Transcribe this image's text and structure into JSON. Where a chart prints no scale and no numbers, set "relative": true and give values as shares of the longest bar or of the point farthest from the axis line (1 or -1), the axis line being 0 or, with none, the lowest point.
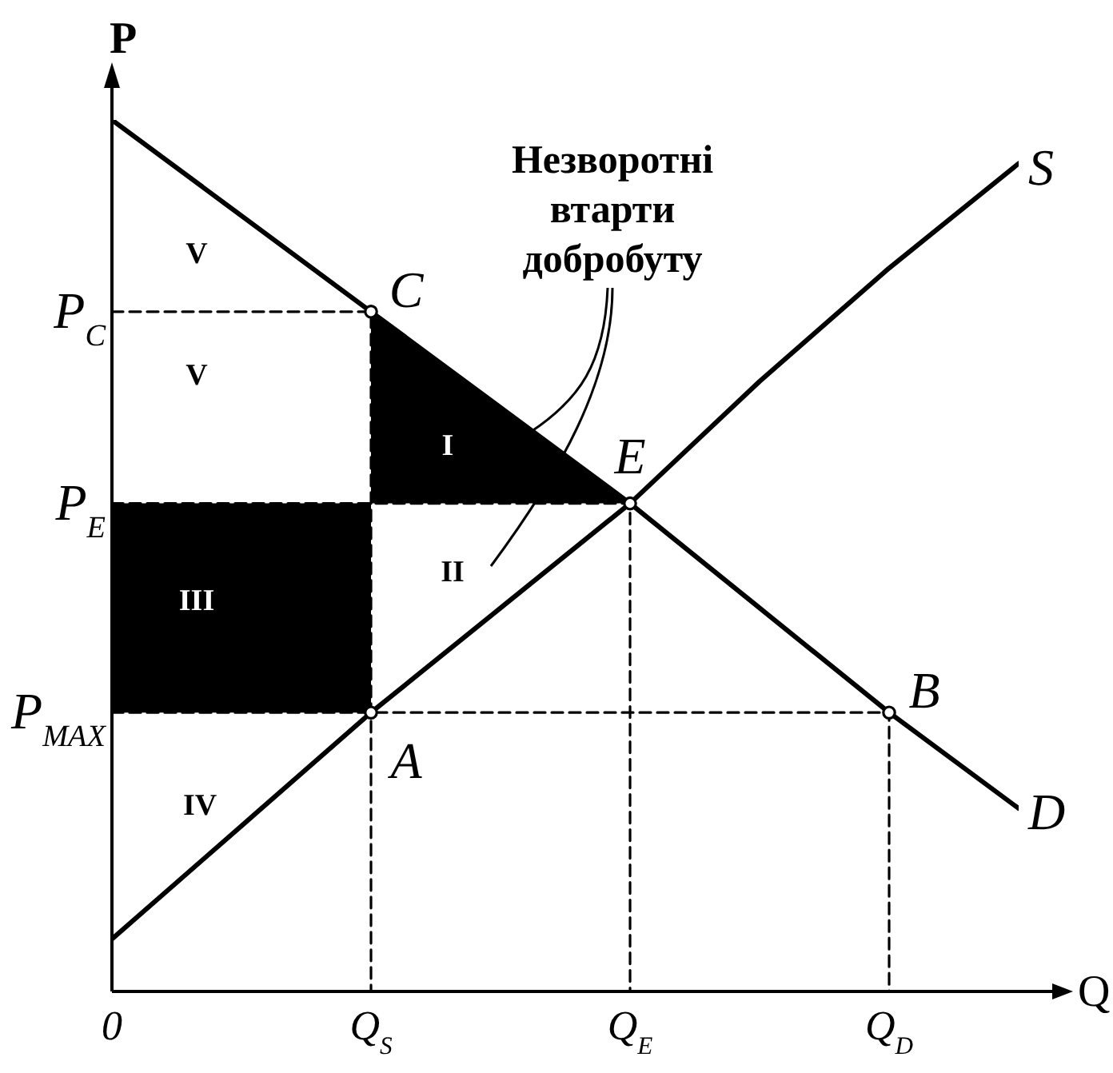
{
  "chart_data": {
    "type": "line",
    "relative": true,
    "xlabel": "Q",
    "ylabel": "P",
    "categories": [
      "0",
      null,
      "Q$_{S}$",
      null,
      "Q$_{E}$",
      null,
      "Q$_{D}$",
      null
    ],
    "series": [
      {
        "type": "area",
        "color": "#000000",
        "x": [
          "0",
          "Q$_{S}$",
          "Q$_{S}$",
          "0"
        ],
        "values": [
          0.56,
          0.56,
          0.32,
          0.32
        ]
      },
      {
        "type": "area",
        "color": "#000000",
        "x": [
          "Q$_{S}$",
          "Q$_{E}$",
          "Q$_{S}$"
        ],
        "values": [
          0.78,
          0.56,
          0.56
        ]
      },
      {
        "color": "#000000",
        "line_style": "dashed",
        "x": [
          "0",
          "Q$_{S}$",
          "Q$_{S}$"
        ],
        "values": [
          0.78,
          0.78,
          0
        ]
      },
      {
        "color": "#000000",
        "line_style": "dashed",
        "x": [
          "0",
          "Q$_{E}$",
          "Q$_{E}$"
        ],
        "values": [
          0.56,
          0.56,
          0
        ]
      },
      {
        "color": "#000000",
        "line_style": "dashed",
        "x": [
          "0",
          "Q$_{D}$",
          "Q$_{D}$"
        ],
        "values": [
          0.32,
          0.32,
          0
        ]
      },
      {
        "name": "S",
        "color": "#000000",
        "values": [
          0.06,
          0.19,
          0.32,
          0.44,
          0.56,
          0.7,
          0.83,
          0.95
        ]
      },
      {
        "name": "D",
        "color": "#000000",
        "values": [
          1,
          0.89,
          0.78,
          0.67,
          0.56,
          0.44,
          0.32,
          0.21
        ]
      },
      {
        "type": "scatter",
        "color": "#000000",
        "marker": "circle",
        "x": [
          "Q$_{S}$",
          "Q$_{E}$",
          "Q$_{S}$",
          "Q$_{D}$"
        ],
        "values": [
          0.78,
          0.56,
          0.32,
          0.32
        ]
      }
    ],
    "annotations": [
      "Незворотні втарти добробуту",
      "V",
      "V",
      "I",
      "II",
      "III",
      "IV",
      {
        "text": "P$_{C}$",
        "x": "0",
        "y": 0.78
      },
      {
        "text": "P$_{E}$",
        "x": "0",
        "y": 0.56
      },
      {
        "text": "P$_{MAX}$",
        "x": "0",
        "y": 0.32
      },
      {
        "text": "C",
        "x": "Q$_{S}$",
        "y": 0.78
      },
      {
        "text": "E",
        "x": "Q$_{E}$",
        "y": 0.56
      },
      {
        "text": "A",
        "x": "Q$_{S}$",
        "y": 0.32
      },
      {
        "text": "B",
        "x": "Q$_{D}$",
        "y": 0.32
      }
    ]
  }
}
